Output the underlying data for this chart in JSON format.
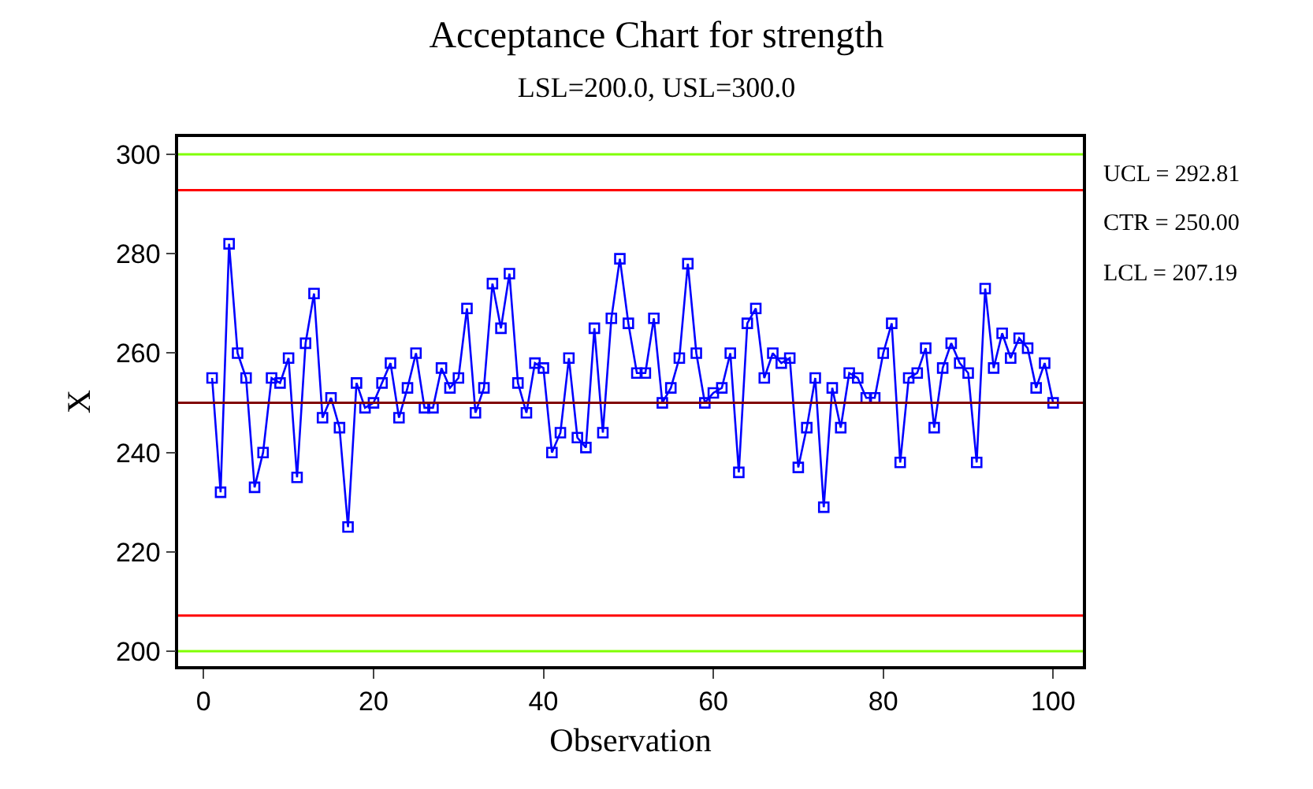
{
  "chart_data": {
    "type": "line",
    "title": "Acceptance Chart for strength",
    "subtitle": "LSL=200.0, USL=300.0",
    "xlabel": "Observation",
    "ylabel": "X",
    "x": [
      1,
      2,
      3,
      4,
      5,
      6,
      7,
      8,
      9,
      10,
      11,
      12,
      13,
      14,
      15,
      16,
      17,
      18,
      19,
      20,
      21,
      22,
      23,
      24,
      25,
      26,
      27,
      28,
      29,
      30,
      31,
      32,
      33,
      34,
      35,
      36,
      37,
      38,
      39,
      40,
      41,
      42,
      43,
      44,
      45,
      46,
      47,
      48,
      49,
      50,
      51,
      52,
      53,
      54,
      55,
      56,
      57,
      58,
      59,
      60,
      61,
      62,
      63,
      64,
      65,
      66,
      67,
      68,
      69,
      70,
      71,
      72,
      73,
      74,
      75,
      76,
      77,
      78,
      79,
      80,
      81,
      82,
      83,
      84,
      85,
      86,
      87,
      88,
      89,
      90,
      91,
      92,
      93,
      94,
      95,
      96,
      97,
      98,
      99,
      100
    ],
    "series": [
      {
        "color": "#0000ff",
        "values": [
          255,
          232,
          282,
          260,
          255,
          233,
          240,
          255,
          254,
          259,
          235,
          262,
          272,
          247,
          251,
          245,
          225,
          254,
          249,
          250,
          254,
          258,
          247,
          253,
          260,
          249,
          249,
          257,
          253,
          255,
          269,
          248,
          253,
          274,
          265,
          276,
          254,
          248,
          258,
          257,
          240,
          244,
          259,
          243,
          241,
          265,
          244,
          267,
          279,
          266,
          256,
          256,
          267,
          250,
          253,
          259,
          278,
          260,
          250,
          252,
          253,
          260,
          236,
          266,
          269,
          255,
          260,
          258,
          259,
          237,
          245,
          255,
          229,
          253,
          245,
          256,
          255,
          251,
          251,
          260,
          266,
          238,
          255,
          256,
          261,
          245,
          257,
          262,
          258,
          256,
          238,
          273,
          257,
          264,
          259,
          263,
          261,
          253,
          258,
          250
        ]
      }
    ],
    "xlim": [
      -3,
      103.5
    ],
    "ylim": [
      197,
      303.5
    ],
    "xticks": [
      0,
      20,
      40,
      60,
      80,
      100
    ],
    "yticks": [
      200,
      220,
      240,
      260,
      280,
      300
    ],
    "ref_lines": [
      {
        "axis": "y",
        "value": 292.81,
        "color": "#ff0000"
      },
      {
        "axis": "y",
        "value": 250.0,
        "color": "#800000"
      },
      {
        "axis": "y",
        "value": 207.19,
        "color": "#ff0000"
      },
      {
        "axis": "y",
        "value": 300,
        "color": "#80ff00"
      },
      {
        "axis": "y",
        "value": 200,
        "color": "#80ff00"
      }
    ],
    "annotations": [
      "UCL = 292.81",
      "CTR = 250.00",
      "LCL = 207.19"
    ],
    "marker": "square"
  }
}
